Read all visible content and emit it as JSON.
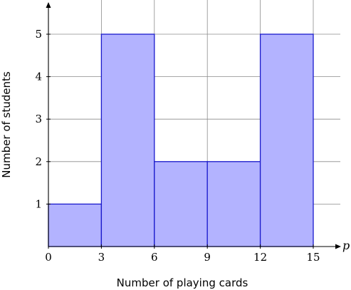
{
  "chart_data": {
    "type": "bar",
    "style": "histogram",
    "bins": [
      {
        "from": 0,
        "to": 3,
        "value": 1
      },
      {
        "from": 3,
        "to": 6,
        "value": 5
      },
      {
        "from": 6,
        "to": 9,
        "value": 2
      },
      {
        "from": 9,
        "to": 12,
        "value": 2
      },
      {
        "from": 12,
        "to": 15,
        "value": 5
      }
    ],
    "x_ticks": [
      0,
      3,
      6,
      9,
      12,
      15
    ],
    "y_ticks": [
      1,
      2,
      3,
      4,
      5
    ],
    "xlim": [
      0,
      15
    ],
    "ylim": [
      0,
      5
    ],
    "xlabel": "Number of playing cards",
    "ylabel": "Number of students",
    "x_variable": "p",
    "grid": true,
    "colors": {
      "bar_fill": "#b3b3ff",
      "bar_stroke": "#1a1acc",
      "grid": "#8c8c8c",
      "axis": "#000000"
    }
  }
}
